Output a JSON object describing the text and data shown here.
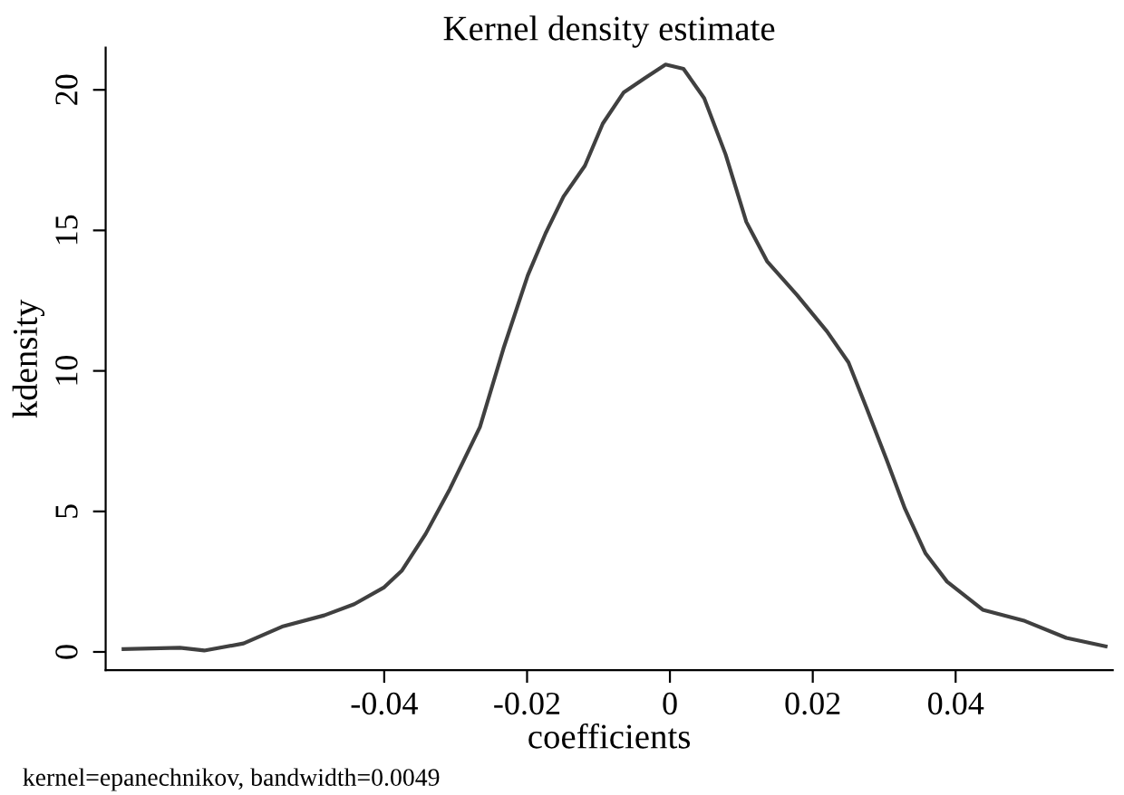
{
  "chart_data": {
    "type": "line",
    "title": "Kernel density estimate",
    "xlabel": "coefficients",
    "ylabel": "kdensity",
    "annotations": [
      "kernel=epanechnikov, bandwidth=0.0049"
    ],
    "x": [
      -0.0765,
      -0.0686,
      -0.0652,
      -0.0597,
      -0.0543,
      -0.0484,
      -0.0442,
      -0.04,
      -0.0375,
      -0.0342,
      -0.0308,
      -0.0266,
      -0.0233,
      -0.0199,
      -0.0174,
      -0.0149,
      -0.0119,
      -0.0094,
      -0.0065,
      -0.0036,
      -0.0006,
      0.0019,
      0.0048,
      0.0078,
      0.0107,
      0.0136,
      0.0178,
      0.022,
      0.025,
      0.0275,
      0.0304,
      0.0329,
      0.0358,
      0.0388,
      0.0438,
      0.0497,
      0.0555,
      0.061
    ],
    "series": [
      {
        "color": "#404040",
        "values": [
          0.1,
          0.15,
          0.05,
          0.3,
          0.9,
          1.3,
          1.7,
          2.3,
          2.9,
          4.2,
          5.8,
          8.0,
          10.8,
          13.4,
          14.9,
          16.2,
          17.3,
          18.8,
          19.9,
          20.4,
          20.9,
          20.75,
          19.7,
          17.7,
          15.3,
          13.9,
          12.7,
          11.4,
          10.3,
          8.7,
          6.8,
          5.1,
          3.5,
          2.5,
          1.5,
          1.1,
          0.5,
          0.2
        ]
      }
    ],
    "xlim": [
      -0.079,
      0.062
    ],
    "ylim": [
      -0.65,
      21.5
    ],
    "xticks": [
      -0.04,
      -0.02,
      0,
      0.02,
      0.04
    ],
    "yticks": [
      0,
      5,
      10,
      15,
      20
    ],
    "grid": false,
    "legend": false,
    "marker": "none",
    "line_style": "solid"
  }
}
